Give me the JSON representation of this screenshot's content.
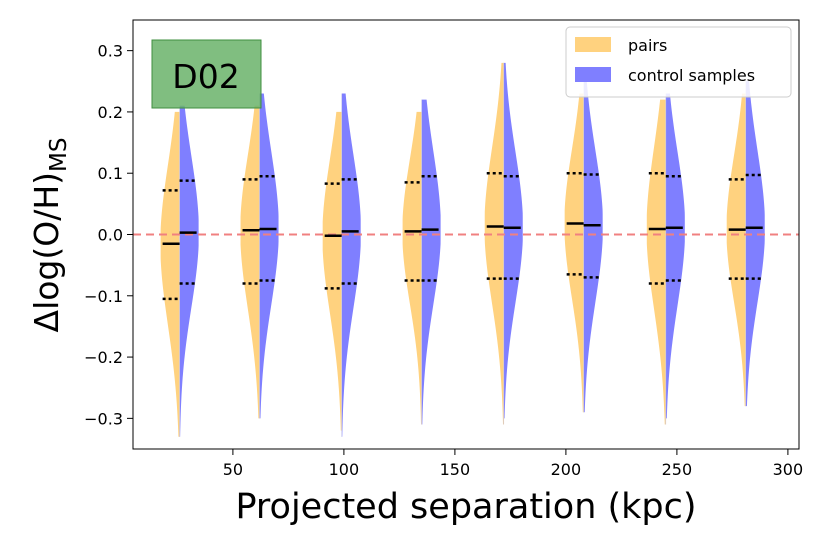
{
  "chart_data": {
    "type": "violin",
    "panel_label": "D02",
    "xlabel": "Projected separation (kpc)",
    "ylabel_main": "Δlog(O/H)",
    "ylabel_sub": "MS",
    "xlim": [
      5,
      305
    ],
    "ylim": [
      -0.35,
      0.35
    ],
    "xticks": [
      50,
      100,
      150,
      200,
      250,
      300
    ],
    "yticks": [
      -0.3,
      -0.2,
      -0.1,
      0.0,
      0.1,
      0.2,
      0.3
    ],
    "reference_line": {
      "y": 0.0,
      "color": "#f08080",
      "style": "dashed"
    },
    "legend": {
      "location": "upper right",
      "entries": [
        "pairs",
        "control samples"
      ]
    },
    "series": [
      {
        "name": "pairs",
        "side": "left",
        "color": "#ffd27f"
      },
      {
        "name": "control samples",
        "side": "right",
        "color": "#7f7fff"
      }
    ],
    "bins": [
      {
        "x": 26,
        "pairs": {
          "median": -0.015,
          "q1": -0.105,
          "q3": 0.072,
          "min": -0.33,
          "max": 0.2
        },
        "control": {
          "median": 0.003,
          "q1": -0.08,
          "q3": 0.088,
          "min": -0.33,
          "max": 0.21
        }
      },
      {
        "x": 62,
        "pairs": {
          "median": 0.007,
          "q1": -0.08,
          "q3": 0.09,
          "min": -0.3,
          "max": 0.21
        },
        "control": {
          "median": 0.009,
          "q1": -0.075,
          "q3": 0.095,
          "min": -0.3,
          "max": 0.23
        }
      },
      {
        "x": 99,
        "pairs": {
          "median": -0.002,
          "q1": -0.088,
          "q3": 0.083,
          "min": -0.32,
          "max": 0.2
        },
        "control": {
          "median": 0.005,
          "q1": -0.08,
          "q3": 0.09,
          "min": -0.33,
          "max": 0.23
        }
      },
      {
        "x": 135,
        "pairs": {
          "median": 0.005,
          "q1": -0.075,
          "q3": 0.085,
          "min": -0.31,
          "max": 0.2
        },
        "control": {
          "median": 0.008,
          "q1": -0.075,
          "q3": 0.095,
          "min": -0.31,
          "max": 0.22
        }
      },
      {
        "x": 172,
        "pairs": {
          "median": 0.013,
          "q1": -0.072,
          "q3": 0.1,
          "min": -0.31,
          "max": 0.28
        },
        "control": {
          "median": 0.011,
          "q1": -0.072,
          "q3": 0.095,
          "min": -0.3,
          "max": 0.28
        }
      },
      {
        "x": 208,
        "pairs": {
          "median": 0.018,
          "q1": -0.065,
          "q3": 0.1,
          "min": -0.29,
          "max": 0.23
        },
        "control": {
          "median": 0.015,
          "q1": -0.07,
          "q3": 0.098,
          "min": -0.29,
          "max": 0.25
        }
      },
      {
        "x": 245,
        "pairs": {
          "median": 0.009,
          "q1": -0.08,
          "q3": 0.1,
          "min": -0.31,
          "max": 0.22
        },
        "control": {
          "median": 0.011,
          "q1": -0.075,
          "q3": 0.095,
          "min": -0.3,
          "max": 0.23
        }
      },
      {
        "x": 281,
        "pairs": {
          "median": 0.008,
          "q1": -0.072,
          "q3": 0.09,
          "min": -0.28,
          "max": 0.23
        },
        "control": {
          "median": 0.011,
          "q1": -0.072,
          "q3": 0.097,
          "min": -0.28,
          "max": 0.25
        }
      }
    ]
  }
}
